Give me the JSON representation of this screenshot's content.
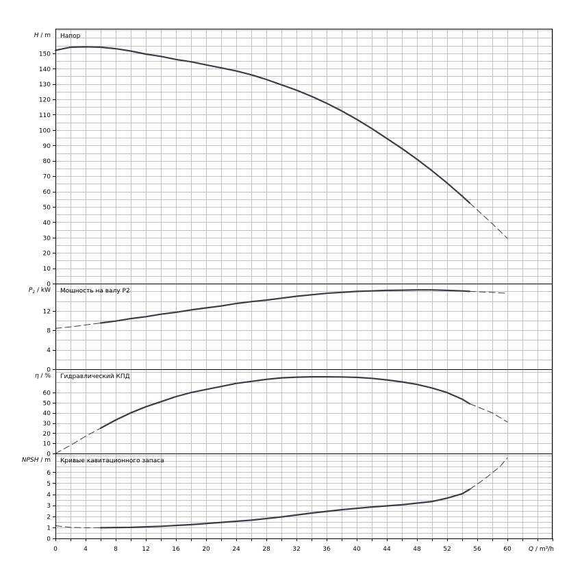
{
  "x_axis": {
    "label_prefix": "Q",
    "label_unit": "m³/h",
    "min": 0,
    "max": 66,
    "tick_step": 2,
    "tick_labels": [
      "0",
      "4",
      "8",
      "12",
      "16",
      "20",
      "24",
      "28",
      "32",
      "36",
      "40",
      "44",
      "48",
      "52",
      "56",
      "60"
    ]
  },
  "colors": {
    "curve": "#3a3d48",
    "grid": "#c0c0c0",
    "frame": "#000000",
    "background": "#ffffff"
  },
  "chart_data": [
    {
      "type": "line",
      "title": "Напор",
      "y_symbol": "H",
      "y_unit": "m",
      "ylim": [
        0,
        166
      ],
      "y_grid_step": 5,
      "y_tick_labels": [
        "0",
        "10",
        "20",
        "30",
        "40",
        "50",
        "60",
        "70",
        "80",
        "90",
        "100",
        "110",
        "120",
        "130",
        "140",
        "150"
      ],
      "grid": true,
      "series": [
        {
          "style": "solid",
          "x": [
            0,
            2,
            4,
            6,
            8,
            10,
            12,
            14,
            16,
            18,
            20,
            22,
            24,
            26,
            28,
            30,
            32,
            34,
            36,
            38,
            40,
            42,
            44,
            46,
            48,
            50,
            52,
            54,
            55
          ],
          "y": [
            152,
            154,
            154.2,
            154,
            153,
            151.5,
            149.5,
            148,
            146,
            144.5,
            142.5,
            140.5,
            138.5,
            136,
            133,
            129.5,
            126,
            122,
            117.5,
            112.5,
            107,
            101,
            94.5,
            88,
            81,
            73.5,
            65.5,
            57,
            52.5
          ]
        },
        {
          "style": "dashed",
          "x": [
            55,
            56,
            58,
            60
          ],
          "y": [
            52.5,
            48,
            39,
            29.5
          ]
        }
      ]
    },
    {
      "type": "line",
      "title": "Мощность на валу P2",
      "y_symbol": "P",
      "y_subscript": "2",
      "y_unit": "kW",
      "ylim": [
        0,
        17.6
      ],
      "y_grid_step": 2,
      "y_tick_labels": [
        "0",
        "4",
        "8",
        "12"
      ],
      "grid": true,
      "series": [
        {
          "style": "dashed",
          "x": [
            0,
            2,
            4,
            6
          ],
          "y": [
            8.4,
            8.7,
            9.1,
            9.5
          ]
        },
        {
          "style": "solid",
          "x": [
            6,
            8,
            10,
            12,
            14,
            16,
            18,
            20,
            22,
            24,
            26,
            28,
            30,
            32,
            34,
            36,
            38,
            40,
            42,
            44,
            46,
            48,
            50,
            52,
            54,
            55
          ],
          "y": [
            9.5,
            9.9,
            10.4,
            10.8,
            11.3,
            11.7,
            12.2,
            12.6,
            13,
            13.5,
            13.9,
            14.2,
            14.6,
            15,
            15.3,
            15.6,
            15.8,
            16,
            16.1,
            16.2,
            16.25,
            16.3,
            16.3,
            16.2,
            16.1,
            16
          ]
        },
        {
          "style": "dashed",
          "x": [
            55,
            58,
            60
          ],
          "y": [
            16,
            15.8,
            15.6
          ]
        }
      ]
    },
    {
      "type": "line",
      "title": "Гидравлический КПД",
      "y_symbol": "η",
      "y_unit": "%",
      "ylim": [
        0,
        83
      ],
      "y_grid_step": 10,
      "y_tick_labels": [
        "0",
        "10",
        "20",
        "30",
        "40",
        "50",
        "60"
      ],
      "grid": true,
      "series": [
        {
          "style": "dashed",
          "x": [
            0,
            2,
            4,
            6
          ],
          "y": [
            0,
            8,
            17,
            25
          ]
        },
        {
          "style": "solid",
          "x": [
            6,
            8,
            10,
            12,
            14,
            16,
            18,
            20,
            22,
            24,
            26,
            28,
            30,
            32,
            34,
            36,
            38,
            40,
            42,
            44,
            46,
            48,
            50,
            52,
            54,
            55
          ],
          "y": [
            25,
            33,
            40,
            46,
            51,
            56,
            60,
            63,
            66,
            69,
            71,
            73,
            74.5,
            75.2,
            75.5,
            75.5,
            75.4,
            75,
            74,
            72.5,
            70.5,
            68,
            64.5,
            60,
            53.5,
            49
          ]
        },
        {
          "style": "dashed",
          "x": [
            55,
            58,
            60
          ],
          "y": [
            49,
            40,
            31
          ]
        }
      ]
    },
    {
      "type": "line",
      "title": "Кривые кавитационного запаса",
      "y_symbol": "NPSH",
      "y_unit": "m",
      "ylim": [
        0,
        7.7
      ],
      "y_grid_step": 0.5,
      "y_tick_labels": [
        "0",
        "1",
        "2",
        "3",
        "4",
        "5",
        "6"
      ],
      "grid": true,
      "series": [
        {
          "style": "dashed",
          "x": [
            0,
            2,
            4,
            6
          ],
          "y": [
            1.15,
            1.0,
            0.97,
            0.97
          ]
        },
        {
          "style": "solid",
          "x": [
            6,
            10,
            14,
            18,
            22,
            26,
            30,
            34,
            38,
            42,
            46,
            48,
            50,
            52,
            54,
            55
          ],
          "y": [
            0.97,
            1.0,
            1.1,
            1.25,
            1.45,
            1.65,
            1.95,
            2.3,
            2.6,
            2.85,
            3.05,
            3.2,
            3.35,
            3.65,
            4.05,
            4.45
          ]
        },
        {
          "style": "dashed",
          "x": [
            55,
            57,
            59,
            60
          ],
          "y": [
            4.45,
            5.4,
            6.5,
            7.3
          ]
        }
      ]
    }
  ]
}
